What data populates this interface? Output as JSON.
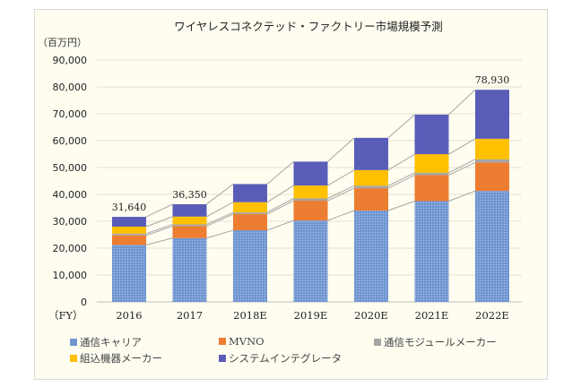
{
  "chart_data": {
    "type": "stacked-bar",
    "title": "ワイヤレスコネクテッド・ファクトリー市場規模予測",
    "ylabel": "（百万円）",
    "xlabel": "（FY）",
    "categories": [
      "2016",
      "2017",
      "2018E",
      "2019E",
      "2020E",
      "2021E",
      "2022E"
    ],
    "ylim": [
      0,
      90000
    ],
    "yticks": [
      "0",
      "10,000",
      "20,000",
      "30,000",
      "40,000",
      "50,000",
      "60,000",
      "70,000",
      "80,000",
      "90,000"
    ],
    "grid": true,
    "legend_position": "bottom",
    "series": [
      {
        "name": "通信キャリア",
        "color": "#7096d2",
        "values": [
          21200,
          23750,
          26650,
          30300,
          34000,
          37500,
          41300
        ]
      },
      {
        "name": "MVNO",
        "color": "#ed7d31",
        "values": [
          3550,
          4450,
          6000,
          7350,
          8300,
          9700,
          10550
        ]
      },
      {
        "name": "通信モジュールメーカー",
        "color": "#a5a5a5",
        "values": [
          650,
          650,
          650,
          850,
          900,
          850,
          1200
        ]
      },
      {
        "name": "組込機器メーカー",
        "color": "#ffc000",
        "values": [
          2600,
          2900,
          3800,
          4800,
          5850,
          6900,
          7650
        ]
      },
      {
        "name": "システムインテグレータ",
        "color": "#5a5db8",
        "values": [
          3640,
          4600,
          6750,
          8900,
          12000,
          14750,
          18230
        ]
      }
    ],
    "data_labels": [
      {
        "category": "2016",
        "text": "31,640"
      },
      {
        "category": "2017",
        "text": "36,350"
      },
      {
        "category": "2022E",
        "text": "78,930"
      }
    ]
  }
}
